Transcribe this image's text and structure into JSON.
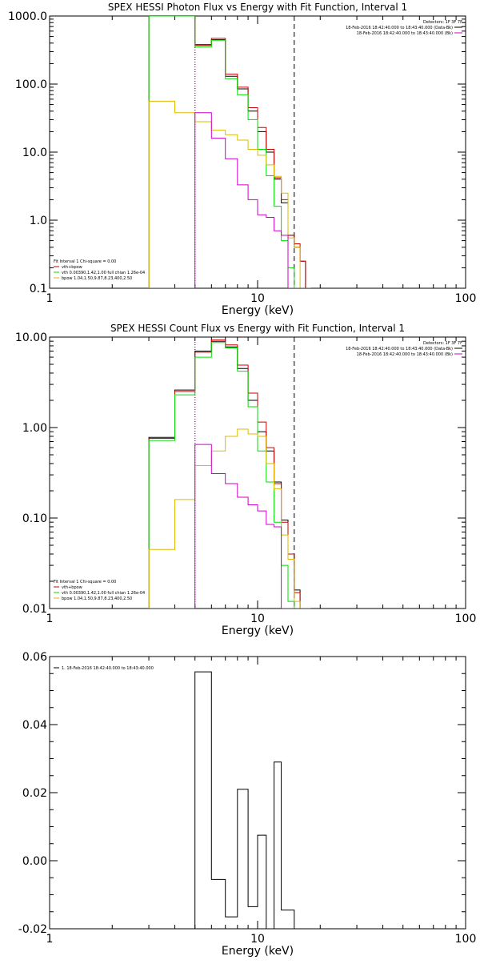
{
  "colors": {
    "total": "#000000",
    "sum": "#cc0000",
    "vth": "#00dd00",
    "bpow": "#ddbb00",
    "magenta": "#cc00cc",
    "background": "#ffffff"
  },
  "chart_data": [
    {
      "type": "line",
      "title": "SPEX HESSI Photon Flux vs Energy with Fit Function, Interval 1",
      "xlabel": "Energy (keV)",
      "ylabel": "",
      "xscale": "log",
      "yscale": "log",
      "xlim": [
        1,
        100
      ],
      "ylim": [
        0.1,
        1000
      ],
      "xticks": [
        "1",
        "10",
        "100"
      ],
      "yticks": [
        "0.1",
        "1.0",
        "10.0",
        "100.0",
        "1000.0"
      ],
      "header_right": [
        "Detectors: 1F 3F 7F",
        "18-Feb-2016 18:42:40.000 to 18:43:40.000 (Data-Bk)",
        "18-Feb-2016 18:42:40.000 to 18:43:40.000 (Bk)"
      ],
      "legend_left": [
        "Fit Interval 1   Chi-square = 0.00",
        "vth+bpow",
        "vth 0.00390,1.42,1.00  full chian 1.26e-04",
        "bpow 1.04,1.50,9.87,8.23,400,2.50"
      ],
      "vlines": [
        {
          "x": 5.0,
          "style": "dotted",
          "color": "black"
        },
        {
          "x": 5.0,
          "style": "dotted",
          "color": "magenta"
        },
        {
          "x": 15.0,
          "style": "dashed",
          "color": "black"
        }
      ],
      "edges": [
        3.0,
        4.0,
        5.0,
        6.0,
        7.0,
        8.0,
        9.0,
        10.0,
        11.0,
        12.0,
        13.0,
        14.0,
        15.0,
        16.0,
        17.0,
        18.0
      ],
      "series": [
        {
          "name": "Data-Bk",
          "color_key": "total",
          "values": [
            1000,
            1000,
            380,
            450,
            130,
            85,
            40,
            20,
            10,
            4,
            1.8,
            0.6,
            0.4,
            0.25,
            0.1
          ]
        },
        {
          "name": "vth+bpow",
          "color_key": "sum",
          "values": [
            1000,
            1000,
            370,
            470,
            140,
            90,
            45,
            23,
            11,
            4.2,
            2.0,
            0.6,
            0.45,
            0.25,
            0.1
          ]
        },
        {
          "name": "vth",
          "color_key": "vth",
          "values": [
            1000,
            1000,
            350,
            440,
            120,
            70,
            30,
            11,
            4.5,
            1.6,
            0.5,
            0.2,
            0.1,
            0.1,
            0.1
          ]
        },
        {
          "name": "bpow",
          "color_key": "bpow",
          "values": [
            56,
            38,
            28,
            21,
            18,
            15,
            11,
            9,
            6.5,
            4.4,
            2.5,
            0.55,
            0.4,
            0.1,
            0.1
          ]
        },
        {
          "name": "Bk",
          "color_key": "magenta",
          "values": [
            0.1,
            0.1,
            38,
            16,
            8,
            3.3,
            2.0,
            1.2,
            1.1,
            0.7,
            0.6,
            0.1,
            0.1,
            0.1,
            0.1
          ]
        }
      ]
    },
    {
      "type": "line",
      "title": "SPEX HESSI Count Flux vs Energy with Fit Function, Interval 1",
      "xlabel": "Energy (keV)",
      "ylabel": "",
      "xscale": "log",
      "yscale": "log",
      "xlim": [
        1,
        100
      ],
      "ylim": [
        0.01,
        10
      ],
      "xticks": [
        "1",
        "10",
        "100"
      ],
      "yticks": [
        "0.01",
        "0.10",
        "1.00",
        "10.00"
      ],
      "header_right": [
        "Detectors: 1F 3F 7F",
        "18-Feb-2016 18:42:40.000 to 18:43:40.000 (Data-Bk)",
        "18-Feb-2016 18:42:40.000 to 18:43:40.000 (Bk)"
      ],
      "legend_left": [
        "Fit Interval 1   Chi-square = 0.00",
        "vth+bpow",
        "vth 0.00390,1.42,1.00  full chian 1.26e-04",
        "bpow 1.04,1.50,9.87,8.23,400,2.50"
      ],
      "vlines": [
        {
          "x": 5.0,
          "style": "dotted",
          "color": "black"
        },
        {
          "x": 5.0,
          "style": "dotted",
          "color": "magenta"
        },
        {
          "x": 15.0,
          "style": "dashed",
          "color": "black"
        }
      ],
      "edges": [
        3.0,
        4.0,
        5.0,
        6.0,
        7.0,
        8.0,
        9.0,
        10.0,
        11.0,
        12.0,
        13.0,
        14.0,
        15.0,
        16.0,
        17.0,
        18.0
      ],
      "series": [
        {
          "name": "Data-Bk",
          "color_key": "total",
          "values": [
            0.78,
            2.6,
            7.0,
            9.0,
            7.8,
            4.5,
            2.0,
            0.9,
            0.55,
            0.25,
            0.095,
            0.04,
            0.016,
            0.01,
            0.01
          ]
        },
        {
          "name": "vth+bpow",
          "color_key": "sum",
          "values": [
            0.76,
            2.5,
            6.8,
            9.3,
            8.2,
            4.9,
            2.4,
            1.15,
            0.6,
            0.24,
            0.09,
            0.04,
            0.015,
            0.01,
            0.01
          ]
        },
        {
          "name": "vth",
          "color_key": "vth",
          "values": [
            0.72,
            2.3,
            6.0,
            8.7,
            7.6,
            4.2,
            1.7,
            0.55,
            0.25,
            0.09,
            0.03,
            0.012,
            0.01,
            0.01,
            0.01
          ]
        },
        {
          "name": "bpow",
          "color_key": "bpow",
          "values": [
            0.045,
            0.16,
            0.38,
            0.55,
            0.8,
            0.96,
            0.85,
            0.8,
            0.4,
            0.21,
            0.065,
            0.035,
            0.012,
            0.01,
            0.01
          ]
        },
        {
          "name": "Bk",
          "color_key": "magenta",
          "values": [
            0.01,
            0.01,
            0.65,
            0.31,
            0.24,
            0.17,
            0.14,
            0.12,
            0.085,
            0.08,
            0.01,
            0.01,
            0.01,
            0.01,
            0.01
          ]
        }
      ]
    },
    {
      "type": "line",
      "title": "",
      "xlabel": "Energy (keV)",
      "ylabel": "",
      "xscale": "log",
      "yscale": "linear",
      "xlim": [
        1,
        100
      ],
      "ylim": [
        -0.02,
        0.06
      ],
      "xticks": [
        "1",
        "10",
        "100"
      ],
      "yticks": [
        "-0.02",
        "0.00",
        "0.02",
        "0.04",
        "0.06"
      ],
      "legend_left": [
        "1. 18-Feb-2016 18:42:40.000 to 18:43:40.000"
      ],
      "edges": [
        5.0,
        6.0,
        7.0,
        8.0,
        9.0,
        10.0,
        11.0,
        12.0,
        13.0,
        14.0,
        15.0
      ],
      "series": [
        {
          "name": "1. 18-Feb-2016 18:42:40.000 to 18:43:40.000",
          "color_key": "total",
          "values": [
            0.0555,
            -0.0055,
            -0.0165,
            0.021,
            -0.0135,
            0.0075,
            -0.02,
            0.029,
            -0.0145,
            -0.0145
          ]
        }
      ]
    }
  ]
}
